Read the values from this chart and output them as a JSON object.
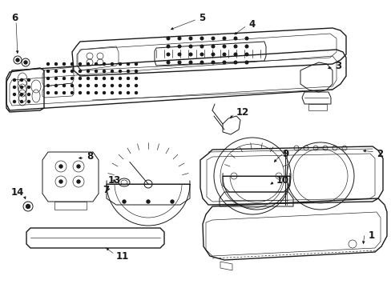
{
  "bg_color": "#ffffff",
  "lc": "#1a1a1a",
  "lw": 0.7,
  "tlw": 0.45,
  "thk": 1.0,
  "fs": 8.5
}
